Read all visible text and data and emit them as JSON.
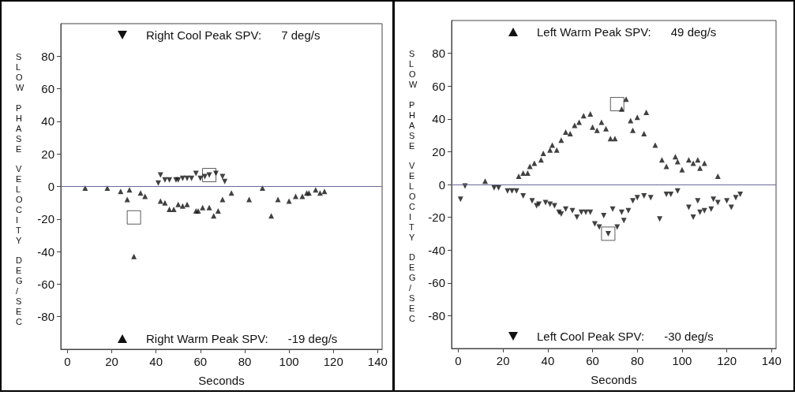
{
  "chart_data": [
    {
      "type": "scatter",
      "xlabel": "Seconds",
      "ylabel": "SLOW PHASE VELOCITY DEG/SEC",
      "xlim": [
        -3,
        142
      ],
      "ylim": [
        -100,
        100
      ],
      "xticks": [
        0,
        20,
        40,
        60,
        80,
        100,
        120,
        140
      ],
      "yticks": [
        -80,
        -60,
        -40,
        -20,
        0,
        20,
        40,
        60,
        80
      ],
      "grid": false,
      "annotations": [
        "Right Cool Peak SPV:      7 deg/s",
        "Right Warm Peak SPV:      -19 deg/s"
      ],
      "ref_lines": [
        {
          "axis": "y",
          "value": 0,
          "color": "#6a6a9a"
        }
      ],
      "series": [
        {
          "color": "#111111",
          "marker": "triangle-down",
          "x": [
            41,
            42,
            44,
            46,
            49,
            50,
            52,
            54,
            56,
            58,
            60,
            62,
            64,
            67,
            70,
            71
          ],
          "values": [
            2,
            7,
            4,
            4,
            4,
            4,
            5,
            5,
            5,
            8,
            5,
            6,
            7,
            8,
            6,
            3
          ]
        },
        {
          "color": "#111111",
          "marker": "triangle",
          "x": [
            8,
            18,
            24,
            27,
            28,
            30,
            33,
            35,
            42,
            44,
            46,
            48,
            50,
            52,
            54,
            58,
            59,
            61,
            64,
            66,
            68,
            70,
            74,
            82,
            88,
            92,
            95,
            100,
            103,
            106,
            108,
            109,
            112,
            114,
            116
          ],
          "values": [
            -1,
            -1,
            -3,
            -8,
            -2,
            -43,
            -4,
            -6,
            -9,
            -10,
            -14,
            -14,
            -11,
            -12,
            -11,
            -15,
            -15,
            -13,
            -13,
            -18,
            -15,
            -8,
            -4,
            -8,
            -1,
            -18,
            -8,
            -9,
            -6,
            -6,
            -4,
            -4,
            -2,
            -4,
            -3
          ]
        },
        {
          "color": "#333333",
          "marker": "square",
          "x": [
            64,
            30
          ],
          "values": [
            7,
            -19
          ]
        }
      ]
    },
    {
      "type": "scatter",
      "xlabel": "Seconds",
      "ylabel": "SLOW PHASE VELOCITY DEG/SEC",
      "xlim": [
        -3,
        142
      ],
      "ylim": [
        -100,
        100
      ],
      "xticks": [
        0,
        20,
        40,
        60,
        80,
        100,
        120,
        140
      ],
      "yticks": [
        -80,
        -60,
        -40,
        -20,
        0,
        20,
        40,
        60,
        80
      ],
      "grid": false,
      "annotations": [
        "Left Warm Peak SPV:      49 deg/s",
        "Left Cool Peak SPV:      -30 deg/s"
      ],
      "ref_lines": [
        {
          "axis": "y",
          "value": 0,
          "color": "#6a6a9a"
        }
      ],
      "series": [
        {
          "color": "#111111",
          "marker": "triangle",
          "x": [
            12,
            27,
            29,
            31,
            32,
            34,
            37,
            38,
            41,
            42,
            44,
            46,
            48,
            50,
            52,
            54,
            56,
            59,
            60,
            62,
            64,
            66,
            68,
            70,
            73,
            75,
            77,
            78,
            80,
            83,
            84,
            88,
            91,
            93,
            97,
            98,
            100,
            103,
            105,
            107,
            108,
            110,
            116
          ],
          "values": [
            2,
            5,
            7,
            7,
            11,
            13,
            15,
            19,
            21,
            24,
            21,
            27,
            32,
            31,
            36,
            38,
            42,
            43,
            35,
            33,
            38,
            34,
            28,
            28,
            46,
            52,
            39,
            33,
            41,
            31,
            44,
            24,
            15,
            11,
            17,
            14,
            9,
            15,
            13,
            15,
            10,
            13,
            5
          ]
        },
        {
          "color": "#111111",
          "marker": "triangle-down",
          "x": [
            1,
            3,
            16,
            18,
            22,
            24,
            26,
            29,
            33,
            35,
            36,
            39,
            41,
            43,
            45,
            46,
            48,
            51,
            53,
            55,
            57,
            59,
            61,
            63,
            65,
            67,
            69,
            71,
            73,
            74,
            76,
            78,
            80,
            83,
            86,
            90,
            93,
            95,
            98,
            103,
            105,
            107,
            108,
            110,
            113,
            114,
            116,
            120,
            122,
            124,
            126
          ],
          "values": [
            -9,
            -1,
            -2,
            -2,
            -4,
            -4,
            -4,
            -7,
            -10,
            -13,
            -12,
            -11,
            -12,
            -13,
            -17,
            -18,
            -15,
            -16,
            -20,
            -17,
            -17,
            -17,
            -24,
            -26,
            -19,
            -30,
            -15,
            -26,
            -17,
            -22,
            -16,
            -10,
            -8,
            -7,
            -8,
            -21,
            -6,
            -6,
            -4,
            -14,
            -20,
            -10,
            -17,
            -16,
            -15,
            -9,
            -11,
            -10,
            -14,
            -8,
            -6
          ]
        },
        {
          "color": "#333333",
          "marker": "square",
          "x": [
            71,
            67
          ],
          "values": [
            49,
            -30
          ]
        }
      ]
    }
  ]
}
